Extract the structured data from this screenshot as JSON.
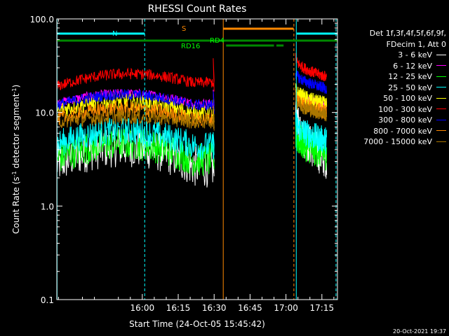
{
  "chart_data": {
    "type": "line",
    "title": "RHESSI Count Rates",
    "xlabel": "Start Time (24-Oct-05 15:45:42)",
    "ylabel_parts": [
      "Count Rate (s",
      "-1",
      " detector segment",
      "-1",
      ")"
    ],
    "yscale": "log",
    "ylim": [
      0.1,
      100.0
    ],
    "ytick_labels": [
      "0.1",
      "1.0",
      "10.0",
      "100.0"
    ],
    "ytick_values": [
      0.1,
      1.0,
      10.0,
      100.0
    ],
    "xlim_minutes": [
      -35.7,
      81.5
    ],
    "xtick_labels": [
      "16:00",
      "16:15",
      "16:30",
      "16:45",
      "17:00",
      "17:15"
    ],
    "xtick_minutes": [
      0,
      15,
      30,
      45,
      60,
      75
    ],
    "legend_header": [
      "Det 1f,3f,4f,5f,6f,9f,",
      "FDecim 1, Att 0"
    ],
    "series": [
      {
        "name": "3 - 6 keV",
        "color": "#ffffff",
        "seg1": {
          "start": 2.8,
          "peak": 4.3,
          "end": 2.6
        },
        "seg2": {
          "start": 9.5,
          "end": 3.2
        },
        "noise": 0.22
      },
      {
        "name": "6 - 12 keV",
        "color": "#ff00ff",
        "seg1": {
          "start": 12.5,
          "peak": 16.0,
          "end": 12.5
        },
        "seg2": {
          "start": 16.5,
          "end": 12.0
        },
        "noise": 0.05
      },
      {
        "name": "12 - 25 keV",
        "color": "#00ff00",
        "seg1": {
          "start": 3.2,
          "peak": 4.7,
          "end": 3.1
        },
        "seg2": {
          "start": 6.0,
          "end": 3.6
        },
        "noise": 0.18
      },
      {
        "name": "25 - 50 keV",
        "color": "#00ffff",
        "seg1": {
          "start": 4.6,
          "peak": 6.3,
          "end": 4.4
        },
        "seg2": {
          "start": 7.8,
          "end": 5.0
        },
        "noise": 0.15
      },
      {
        "name": "50 - 100 keV",
        "color": "#ffff00",
        "seg1": {
          "start": 10.5,
          "peak": 13.0,
          "end": 9.8
        },
        "seg2": {
          "start": 17.5,
          "end": 12.0
        },
        "noise": 0.09
      },
      {
        "name": "100 - 300 keV",
        "color": "#ff0000",
        "seg1": {
          "start": 19.0,
          "peak": 26.0,
          "end": 21.0
        },
        "seg2": {
          "start": 38.0,
          "end": 24.0
        },
        "noise": 0.06
      },
      {
        "name": "300 - 800 keV",
        "color": "#0000ff",
        "seg1": {
          "start": 12.0,
          "peak": 15.5,
          "end": 12.0
        },
        "seg2": {
          "start": 27.0,
          "end": 18.0
        },
        "noise": 0.06
      },
      {
        "name": "800 - 7000 keV",
        "color": "#ff8800",
        "seg1": {
          "start": 8.5,
          "peak": 11.0,
          "end": 8.5
        },
        "seg2": {
          "start": 15.5,
          "end": 10.0
        },
        "noise": 0.08
      },
      {
        "name": "7000 - 15000 keV",
        "color": "#aa7700",
        "seg1": {
          "start": 8.0,
          "peak": 9.0,
          "end": 8.0
        },
        "seg2": {
          "start": 14.0,
          "end": 9.5
        },
        "noise": 0.08
      }
    ],
    "segments": {
      "seg1_minutes": [
        -35.7,
        30.0
      ],
      "seg2_minutes": [
        64.0,
        77.0
      ]
    },
    "spike_minute": 30.0,
    "flags": [
      {
        "label": "N",
        "color": "#00ffff",
        "intervals": [
          [
            -35.7,
            1.0
          ],
          [
            64.5,
            81.5
          ]
        ]
      },
      {
        "label": "S",
        "color": "#ff8800",
        "intervals": [
          [
            33.8,
            63.2
          ]
        ]
      },
      {
        "label": "RD4",
        "color": "#008800",
        "intervals": [
          [
            -35.7,
            81.5
          ]
        ]
      },
      {
        "label": "RD16",
        "color": "#008800",
        "intervals": [
          [
            35.0,
            55.0
          ],
          [
            56.0,
            59.0
          ]
        ]
      }
    ],
    "vlines": [
      {
        "minute": -35.6,
        "color": "#00ffff",
        "style": "solid"
      },
      {
        "minute": 1.0,
        "color": "#00ffff",
        "style": "dashed"
      },
      {
        "minute": 33.8,
        "color": "#ff8800",
        "style": "solid"
      },
      {
        "minute": 63.3,
        "color": "#ff8800",
        "style": "dashed"
      },
      {
        "minute": 64.3,
        "color": "#00ffff",
        "style": "solid"
      },
      {
        "minute": 80.9,
        "color": "#00ffff",
        "style": "dashed"
      }
    ]
  },
  "footer_timestamp": "20-Oct-2021 19:37"
}
